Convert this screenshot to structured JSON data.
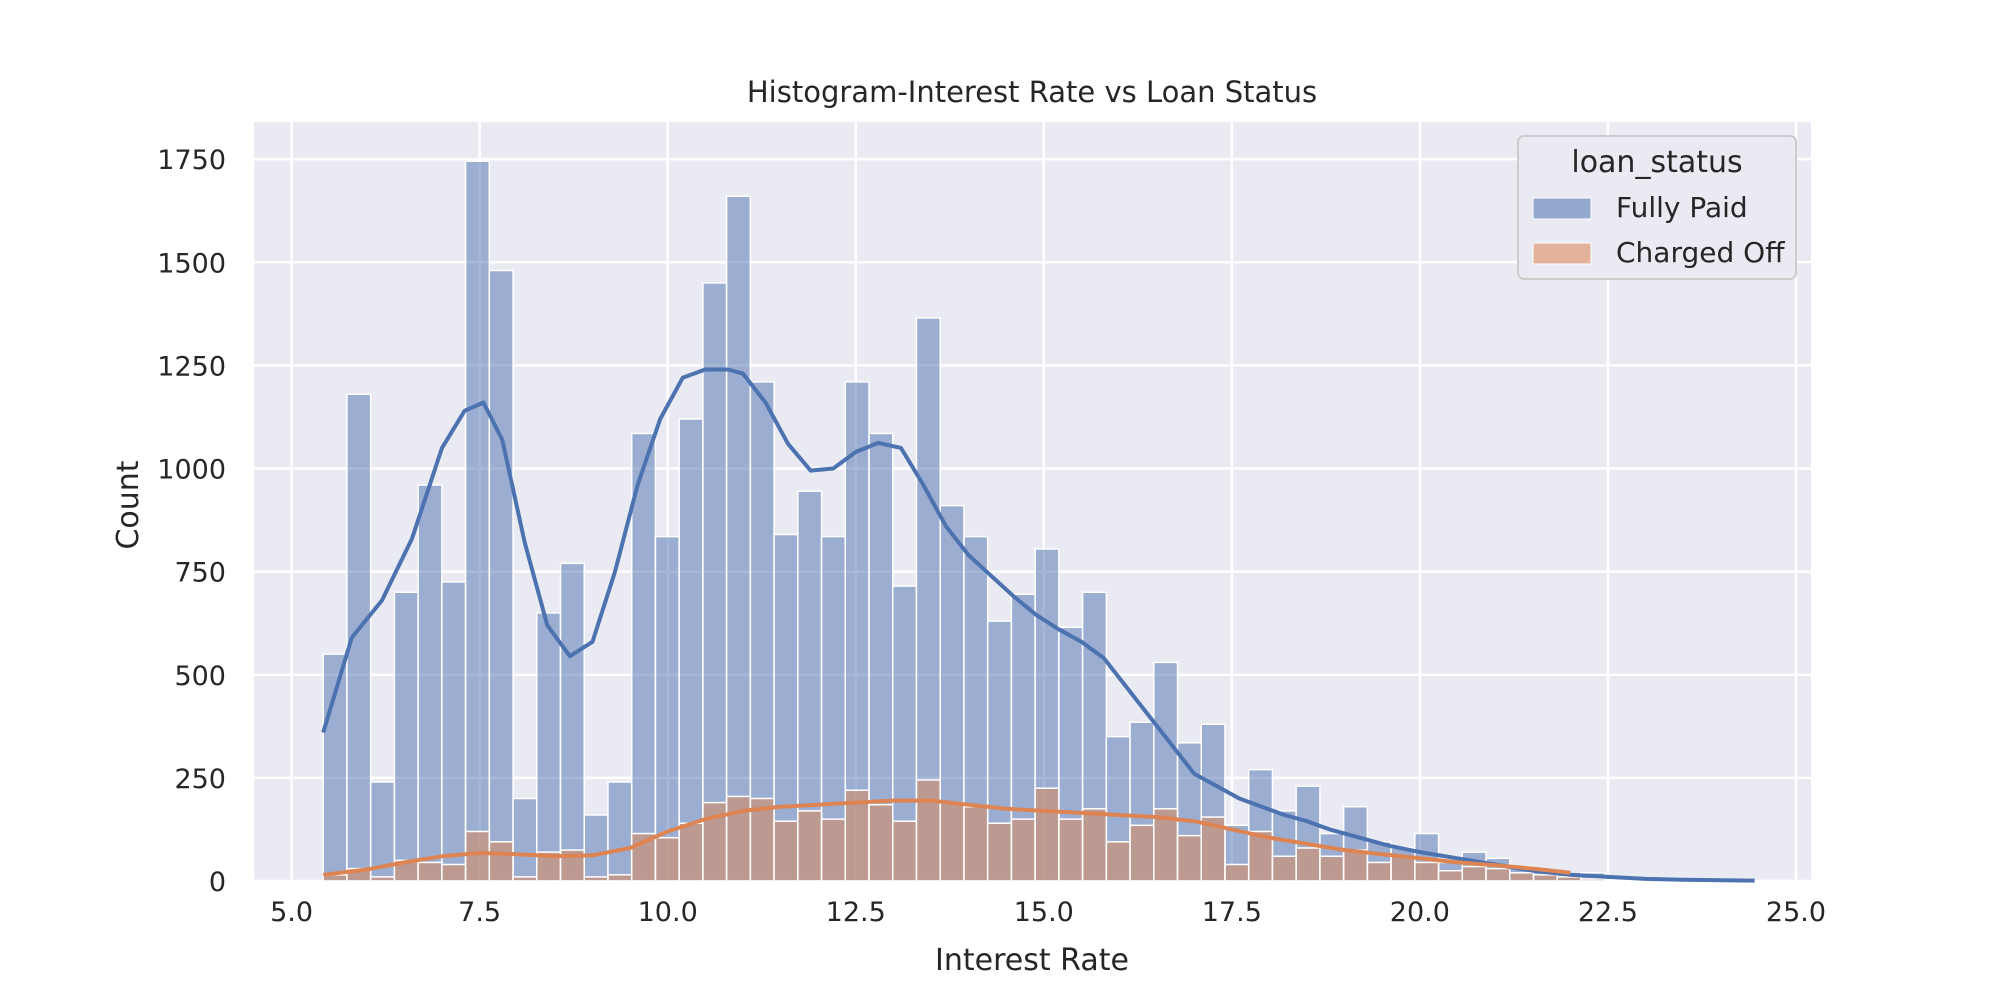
{
  "chart_data": {
    "type": "bar",
    "title": "Histogram-Interest Rate vs Loan Status",
    "xlabel": "Interest Rate",
    "ylabel": "Count",
    "xlim": [
      4.5,
      25.2
    ],
    "ylim": [
      0,
      1840
    ],
    "xticks": [
      "5.0",
      "7.5",
      "10.0",
      "12.5",
      "15.0",
      "17.5",
      "20.0",
      "22.5",
      "25.0"
    ],
    "xtick_values": [
      5.0,
      7.5,
      10.0,
      12.5,
      15.0,
      17.5,
      20.0,
      22.5,
      25.0
    ],
    "yticks": [
      "0",
      "250",
      "500",
      "750",
      "1000",
      "1250",
      "1500",
      "1750"
    ],
    "ytick_values": [
      0,
      250,
      500,
      750,
      1000,
      1250,
      1500,
      1750
    ],
    "grid": true,
    "legend": {
      "title": "loan_status",
      "placement": "upper right"
    },
    "bin_start": 5.42,
    "bin_width": 0.3155,
    "series": [
      {
        "name": "Fully Paid",
        "color": "#4c72b0",
        "values": [
          550,
          1180,
          240,
          700,
          960,
          725,
          1745,
          1480,
          200,
          650,
          770,
          160,
          240,
          1085,
          835,
          1120,
          1450,
          1660,
          1210,
          840,
          945,
          835,
          1210,
          1085,
          715,
          1365,
          910,
          835,
          630,
          695,
          805,
          615,
          700,
          350,
          385,
          530,
          335,
          380,
          135,
          270,
          170,
          230,
          115,
          180,
          95,
          80,
          115,
          45,
          70,
          55,
          35,
          25,
          15,
          20,
          8,
          5,
          4,
          3,
          2,
          1,
          1,
          1
        ],
        "kde_x": [
          5.42,
          5.8,
          6.2,
          6.6,
          7.0,
          7.3,
          7.55,
          7.8,
          8.1,
          8.4,
          8.7,
          9.0,
          9.3,
          9.6,
          9.9,
          10.2,
          10.5,
          10.8,
          11.0,
          11.3,
          11.6,
          11.9,
          12.2,
          12.5,
          12.8,
          13.1,
          13.4,
          13.7,
          14.0,
          14.3,
          14.6,
          14.9,
          15.2,
          15.5,
          15.8,
          16.1,
          16.4,
          16.7,
          17.0,
          17.3,
          17.6,
          17.9,
          18.2,
          18.5,
          18.8,
          19.2,
          19.6,
          20.0,
          20.5,
          21.0,
          21.5,
          22.0,
          22.5,
          23.0,
          23.5,
          24.0,
          24.45
        ],
        "kde_y": [
          360,
          590,
          680,
          830,
          1050,
          1140,
          1160,
          1070,
          820,
          620,
          545,
          580,
          750,
          960,
          1120,
          1220,
          1240,
          1240,
          1230,
          1160,
          1060,
          995,
          1000,
          1040,
          1062,
          1050,
          960,
          860,
          790,
          740,
          690,
          645,
          610,
          580,
          540,
          470,
          400,
          330,
          260,
          230,
          200,
          180,
          160,
          145,
          125,
          105,
          85,
          70,
          55,
          40,
          25,
          15,
          10,
          5,
          3,
          2,
          1
        ]
      },
      {
        "name": "Charged Off",
        "color": "#dd8452",
        "values": [
          15,
          30,
          10,
          50,
          45,
          40,
          120,
          95,
          10,
          70,
          75,
          10,
          15,
          115,
          105,
          140,
          190,
          205,
          200,
          145,
          170,
          150,
          220,
          185,
          145,
          245,
          190,
          180,
          140,
          150,
          225,
          150,
          175,
          95,
          135,
          175,
          110,
          155,
          40,
          120,
          60,
          80,
          60,
          75,
          45,
          60,
          45,
          25,
          35,
          30,
          20,
          15,
          10,
          5,
          3,
          2,
          1,
          1,
          1,
          0,
          0,
          0
        ],
        "kde_x": [
          5.42,
          6.0,
          6.5,
          7.0,
          7.5,
          8.0,
          8.5,
          9.0,
          9.5,
          10.0,
          10.5,
          11.0,
          11.5,
          12.0,
          12.5,
          13.0,
          13.5,
          14.0,
          14.5,
          15.0,
          15.5,
          16.0,
          16.5,
          17.0,
          17.5,
          18.0,
          18.5,
          19.0,
          19.5,
          20.0,
          20.5,
          21.0,
          21.5,
          22.0
        ],
        "kde_y": [
          15,
          28,
          45,
          60,
          68,
          65,
          60,
          62,
          80,
          120,
          150,
          170,
          180,
          185,
          190,
          195,
          195,
          185,
          175,
          170,
          165,
          160,
          155,
          145,
          125,
          105,
          90,
          75,
          65,
          55,
          45,
          38,
          30,
          20
        ]
      }
    ]
  }
}
